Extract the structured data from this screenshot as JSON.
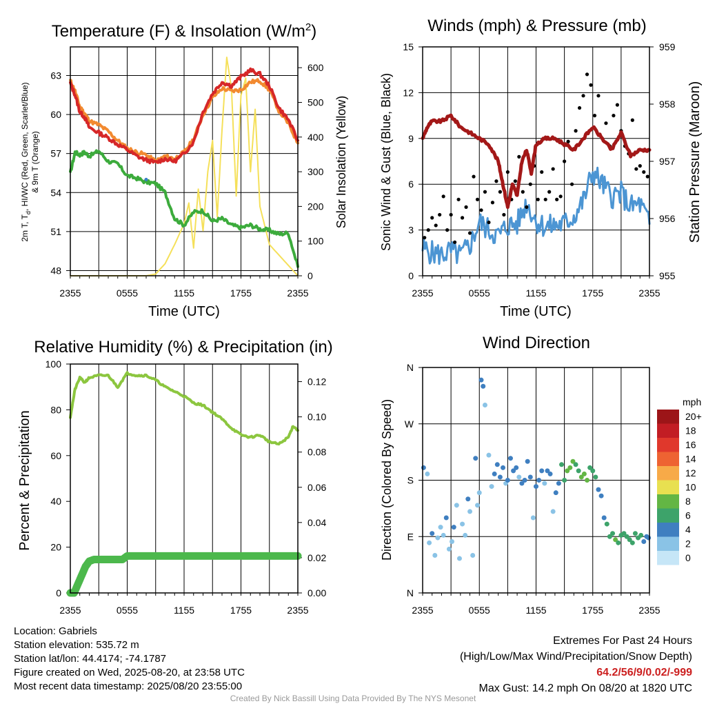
{
  "chart_data": [
    {
      "type": "line",
      "title_main": "Temperature (F) & Insolation (W/m",
      "title_sup": "2",
      "title_end": ")",
      "xlabel": "Time (UTC)",
      "ylabel_line1": "2m T, T",
      "ylabel_sub": "d",
      "ylabel_rest": ", HI/WC (Red, Green, Scarlet/Blue)",
      "ylabel_line2": "& 9m T (Orange)",
      "y2label": "Solar Insolation (Yellow)",
      "x_ticks": [
        "2355",
        "0555",
        "1155",
        "1755",
        "2355"
      ],
      "y_ticks": [
        "48",
        "51",
        "54",
        "57",
        "60",
        "63"
      ],
      "y2_ticks": [
        "0",
        "100",
        "200",
        "300",
        "400",
        "500",
        "600"
      ],
      "ylim": [
        47.6,
        65.2
      ],
      "y2lim": [
        0,
        660
      ],
      "x_hours": [
        0,
        24
      ],
      "series": [
        {
          "role": "temp_2m",
          "color": "#d62728",
          "x": [
            0,
            0.5,
            1,
            1.5,
            2,
            3,
            4,
            5,
            6,
            7,
            8,
            9,
            10,
            11,
            12,
            13,
            14,
            15,
            16,
            17,
            18,
            19,
            20,
            21,
            22,
            23,
            24
          ],
          "y": [
            62.4,
            61.5,
            60.2,
            59.8,
            59.0,
            58.6,
            58.2,
            57.7,
            57.3,
            56.8,
            56.5,
            56.3,
            56.6,
            56.4,
            57.0,
            57.9,
            60.2,
            61.6,
            62.5,
            62.2,
            62.9,
            63.4,
            63.1,
            62.2,
            60.5,
            59.6,
            58.0
          ]
        },
        {
          "role": "temp_9m",
          "color": "#f28a30",
          "x": [
            0,
            0.5,
            1,
            1.5,
            2,
            3,
            4,
            5,
            6,
            7,
            8,
            9,
            10,
            11,
            12,
            13,
            14,
            15,
            16,
            17,
            18,
            19,
            20,
            21,
            22,
            23,
            24
          ],
          "y": [
            62.6,
            61.8,
            60.6,
            60.1,
            59.5,
            59.2,
            58.7,
            58.0,
            57.4,
            57.1,
            56.9,
            56.4,
            56.8,
            56.6,
            57.1,
            58.1,
            60.0,
            61.3,
            62.0,
            61.8,
            61.9,
            62.5,
            62.6,
            61.9,
            60.3,
            59.3,
            57.8
          ]
        },
        {
          "role": "dewpoint",
          "color": "#3cab3c",
          "x": [
            0,
            0.5,
            1,
            1.5,
            2,
            3,
            4,
            5,
            6,
            7,
            8,
            9,
            10,
            11,
            12,
            13,
            14,
            15,
            16,
            17,
            18,
            19,
            20,
            21,
            22,
            23,
            24
          ],
          "y": [
            55.5,
            57.1,
            56.9,
            57.1,
            56.8,
            57.2,
            56.4,
            56.2,
            55.3,
            55.1,
            54.8,
            54.7,
            54.0,
            52.0,
            51.5,
            52.5,
            52.6,
            51.8,
            52.0,
            51.5,
            51.3,
            51.5,
            51.2,
            51.1,
            50.8,
            50.9,
            48.3
          ]
        },
        {
          "role": "insolation",
          "color": "#f5e05a",
          "axis": "y2",
          "x": [
            0,
            8,
            9,
            10,
            11,
            12,
            12.5,
            13,
            13.5,
            14,
            14.5,
            15,
            15.5,
            16,
            16.5,
            17,
            17.5,
            18,
            18.5,
            19,
            19.5,
            20,
            21,
            22,
            23,
            24
          ],
          "y": [
            0,
            0,
            5,
            35,
            90,
            150,
            210,
            80,
            250,
            130,
            300,
            390,
            170,
            420,
            630,
            540,
            230,
            520,
            570,
            300,
            480,
            200,
            90,
            60,
            30,
            0
          ]
        },
        {
          "role": "heat_index_point",
          "color": "#3a7fc8",
          "x": [
            8.0
          ],
          "y": [
            55.0
          ]
        }
      ]
    },
    {
      "type": "line",
      "title": "Winds (mph) & Pressure (mb)",
      "xlabel": "Time (UTC)",
      "ylabel": "Sonic Wind & Gust (Blue, Black)",
      "y2label": "Station Pressure (Maroon)",
      "x_ticks": [
        "2355",
        "0555",
        "1155",
        "1755",
        "2355"
      ],
      "y_ticks": [
        "0",
        "3",
        "6",
        "9",
        "12",
        "15"
      ],
      "y2_ticks": [
        "955",
        "956",
        "957",
        "958",
        "959"
      ],
      "ylim": [
        0,
        15
      ],
      "y2lim": [
        955,
        959
      ],
      "x_hours": [
        0,
        24
      ],
      "series": [
        {
          "role": "wind",
          "color": "#4c95d3",
          "x": [
            0,
            1,
            2,
            3,
            4,
            5,
            6,
            7,
            8,
            9,
            10,
            11,
            12,
            13,
            14,
            15,
            16,
            17,
            18,
            19,
            20,
            21,
            22,
            23,
            24
          ],
          "y": [
            1.8,
            1.5,
            1.4,
            1.6,
            1.3,
            2.0,
            3.5,
            3.0,
            2.6,
            3.3,
            3.4,
            4.8,
            3.6,
            3.2,
            3.3,
            3.4,
            3.9,
            4.9,
            6.8,
            6.0,
            5.2,
            5.4,
            4.5,
            4.7,
            3.4
          ]
        },
        {
          "role": "gust",
          "color": "#000000",
          "x": [
            0.2,
            0.6,
            1.0,
            1.4,
            1.8,
            2.2,
            2.6,
            3.0,
            3.4,
            3.8,
            4.2,
            4.6,
            5.0,
            5.4,
            5.8,
            6.2,
            6.6,
            7.0,
            7.4,
            7.8,
            8.2,
            8.6,
            9.0,
            9.4,
            9.8,
            10.2,
            10.6,
            11.0,
            11.4,
            11.8,
            12.2,
            12.6,
            13.0,
            13.4,
            13.8,
            14.2,
            14.6,
            15.0,
            15.4,
            15.8,
            16.2,
            16.6,
            17.0,
            17.4,
            17.8,
            18.2,
            18.6,
            19.0,
            19.4,
            19.8,
            20.2,
            20.6,
            21.0,
            21.4,
            21.8,
            22.2,
            22.6,
            23.0,
            23.4,
            23.8
          ],
          "y": [
            2.5,
            3.0,
            3.8,
            3.3,
            4.0,
            5.2,
            3.0,
            4.0,
            2.2,
            5.0,
            3.8,
            4.5,
            2.8,
            6.5,
            5.0,
            4.3,
            5.5,
            3.5,
            4.8,
            6.2,
            5.5,
            4.0,
            6.8,
            5.0,
            6.2,
            7.8,
            5.5,
            4.5,
            6.0,
            7.2,
            5.0,
            6.8,
            5.0,
            5.5,
            7.0,
            5.0,
            5.2,
            7.5,
            8.8,
            6.0,
            9.5,
            11.0,
            11.8,
            13.2,
            12.5,
            10.5,
            11.8,
            9.0,
            10.0,
            8.5,
            10.5,
            11.2,
            9.5,
            8.5,
            8.0,
            10.2,
            7.0,
            7.2,
            6.8,
            6.5
          ]
        },
        {
          "role": "pressure",
          "color": "#a31818",
          "axis": "y2",
          "x": [
            0,
            0.5,
            1,
            2,
            3,
            4,
            5,
            6,
            7,
            8,
            8.5,
            9,
            9.5,
            10,
            10.5,
            11,
            11.5,
            12,
            13,
            14,
            15,
            16,
            17,
            18,
            19,
            20,
            21,
            22,
            23,
            24
          ],
          "y": [
            957.4,
            957.6,
            957.7,
            957.7,
            957.8,
            957.6,
            957.5,
            957.4,
            957.3,
            957.0,
            956.6,
            956.2,
            956.6,
            956.4,
            957.0,
            957.2,
            956.8,
            957.3,
            957.4,
            957.4,
            957.3,
            957.2,
            957.4,
            957.6,
            957.4,
            957.2,
            957.5,
            957.1,
            957.2,
            957.2
          ]
        }
      ]
    },
    {
      "type": "line",
      "title": "Relative Humidity (%) & Precipitation (in)",
      "xlabel": "",
      "ylabel": "Percent & Precipitation",
      "x_ticks": [
        "2355",
        "0555",
        "1155",
        "1755",
        "2355"
      ],
      "y_ticks": [
        "0",
        "20",
        "40",
        "60",
        "80",
        "100"
      ],
      "y2_ticks": [
        "0.00",
        "0.02",
        "0.04",
        "0.06",
        "0.08",
        "0.10",
        "0.12"
      ],
      "ylim": [
        0,
        100
      ],
      "y2lim": [
        0,
        0.13
      ],
      "x_hours": [
        0,
        24
      ],
      "series": [
        {
          "role": "rh",
          "color": "#8cc63f",
          "x": [
            0,
            0.5,
            1,
            1.5,
            2,
            3,
            4,
            5,
            6,
            7,
            8,
            9,
            10,
            11,
            12,
            13,
            14,
            15,
            16,
            17,
            18,
            19,
            20,
            21,
            22,
            23,
            23.5,
            24
          ],
          "y": [
            77,
            89,
            94,
            92,
            94,
            95,
            95,
            90,
            96,
            95,
            95,
            93,
            90,
            88,
            86,
            83,
            82,
            79,
            76,
            72,
            69,
            68,
            69,
            66,
            65,
            68,
            73,
            71
          ]
        },
        {
          "role": "precip",
          "color": "#4cb84c",
          "axis": "y2",
          "x": [
            0,
            0.4,
            0.8,
            1.2,
            1.6,
            2.0,
            2.5,
            3.0,
            4.0,
            5.0,
            5.5,
            6.0,
            24
          ],
          "y": [
            0.0,
            0.0,
            0.005,
            0.01,
            0.015,
            0.018,
            0.019,
            0.019,
            0.019,
            0.019,
            0.019,
            0.021,
            0.021
          ]
        }
      ]
    },
    {
      "type": "scatter",
      "title": "Wind Direction",
      "xlabel": "",
      "ylabel": "Direction (Colored By Speed)",
      "x_ticks": [
        "2355",
        "0555",
        "1155",
        "1755",
        "2355"
      ],
      "y_ticks": [
        "N",
        "E",
        "S",
        "W",
        "N"
      ],
      "ylim": [
        0,
        360
      ],
      "x_hours": [
        0,
        24
      ],
      "legend_title": "mph",
      "legend_labels": [
        "0",
        "2",
        "4",
        "6",
        "8",
        "10",
        "12",
        "14",
        "16",
        "18",
        "20+"
      ],
      "legend_colors": [
        "#c6e6f7",
        "#8ac3e6",
        "#3f7fc0",
        "#3da36a",
        "#63b644",
        "#e8e050",
        "#f7aa48",
        "#ee6332",
        "#e0382c",
        "#c21d24",
        "#9c1518"
      ],
      "series": [
        {
          "name": "",
          "x": [
            0.1,
            0.5,
            0.7,
            1.0,
            1.3,
            1.6,
            1.9,
            2.2,
            2.5,
            2.8,
            3.1,
            3.3,
            3.6,
            3.9,
            4.2,
            4.5,
            4.8,
            5.0,
            5.3,
            5.6,
            5.8,
            6.0,
            6.2,
            6.4,
            6.6,
            7.0,
            7.3,
            7.6,
            7.9,
            8.2,
            8.5,
            8.8,
            9.0,
            9.3,
            9.6,
            9.9,
            10.2,
            10.5,
            10.8,
            11.1,
            11.4,
            11.7,
            12.0,
            12.3,
            12.6,
            12.9,
            13.2,
            13.5,
            13.8,
            14.1,
            14.4,
            14.7,
            15.0,
            15.3,
            15.6,
            15.9,
            16.2,
            16.5,
            16.8,
            17.1,
            17.4,
            17.7,
            18.0,
            18.3,
            18.6,
            18.9,
            19.2,
            19.5,
            19.8,
            20.1,
            20.4,
            20.7,
            21.0,
            21.3,
            21.6,
            21.9,
            22.2,
            22.5,
            22.8,
            23.1,
            23.4,
            23.7,
            23.9
          ],
          "y": [
            200,
            190,
            80,
            95,
            60,
            88,
            105,
            92,
            120,
            70,
            82,
            105,
            140,
            55,
            110,
            92,
            150,
            130,
            60,
            215,
            140,
            160,
            340,
            330,
            300,
            220,
            170,
            190,
            205,
            185,
            200,
            175,
            180,
            215,
            195,
            200,
            185,
            175,
            180,
            210,
            185,
            120,
            170,
            180,
            195,
            175,
            195,
            190,
            130,
            160,
            175,
            205,
            180,
            195,
            200,
            210,
            205,
            195,
            185,
            190,
            180,
            200,
            195,
            185,
            165,
            155,
            120,
            110,
            90,
            95,
            85,
            80,
            92,
            95,
            90,
            85,
            80,
            95,
            88,
            92,
            82,
            90,
            88
          ],
          "speed": [
            3,
            2,
            2,
            3,
            2,
            1,
            2,
            2,
            3,
            1,
            2,
            3,
            2,
            1,
            1,
            2,
            3,
            2,
            1,
            4,
            2,
            2,
            4,
            3,
            2,
            1,
            1,
            3,
            4,
            3,
            3,
            2,
            4,
            3,
            3,
            4,
            2,
            3,
            4,
            3,
            4,
            2,
            3,
            4,
            3,
            2,
            4,
            3,
            2,
            3,
            4,
            5,
            6,
            7,
            8,
            7,
            6,
            5,
            7,
            8,
            8,
            6,
            6,
            5,
            4,
            4,
            4,
            6,
            6,
            6,
            7,
            6,
            6,
            5,
            6,
            6,
            6,
            5,
            6,
            6,
            3,
            3,
            3
          ]
        }
      ]
    }
  ],
  "footer": {
    "location": "Location: Gabriels",
    "elevation": "Station elevation: 535.72 m",
    "latlon": "Station lat/lon: 44.4174; -74.1787",
    "created": "Figure created on Wed, 2025-08-20, at 23:58 UTC",
    "recent": "Most recent data timestamp: 2025/08/20 23:55:00",
    "extremes_title": "Extremes For Past 24 Hours",
    "extremes_desc": "(High/Low/Max Wind/Precipitation/Snow Depth)",
    "extremes_values": "64.2/56/9/0.02/-999",
    "max_gust": "Max Gust: 14.2 mph On 08/20 at 1820 UTC",
    "credit": "Created By Nick Bassill Using Data Provided By The NYS Mesonet"
  }
}
